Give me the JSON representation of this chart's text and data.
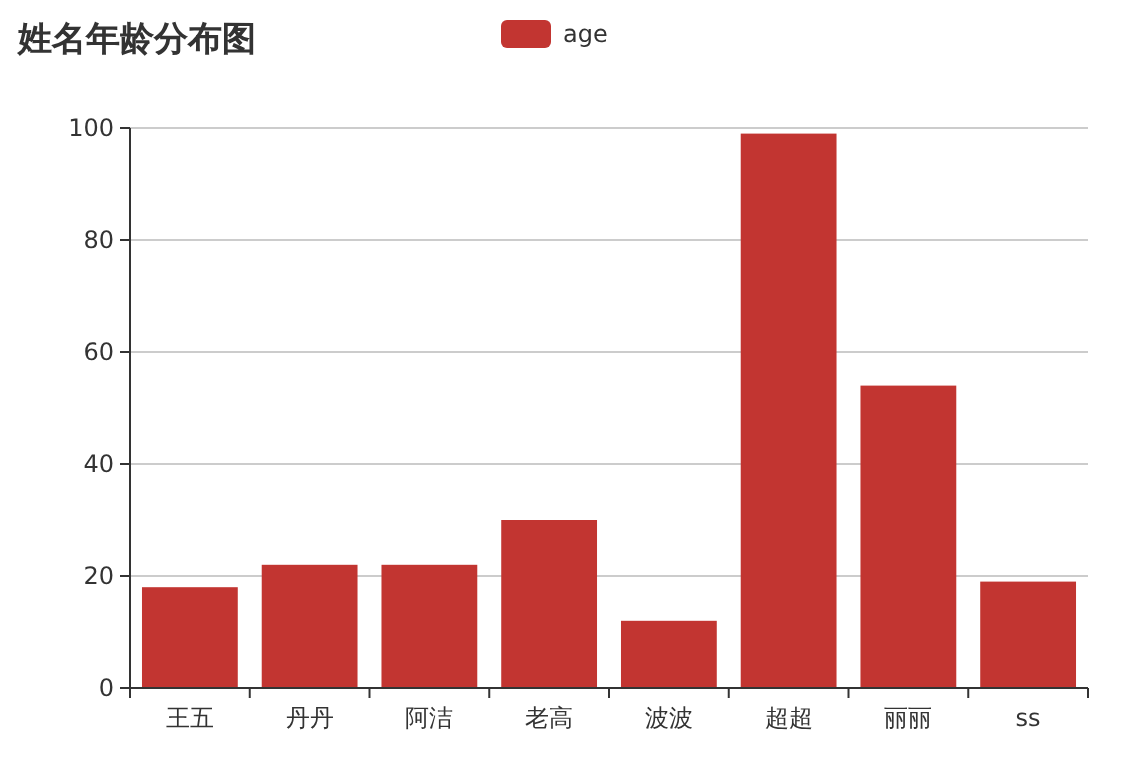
{
  "chart_data": {
    "type": "bar",
    "title": "姓名年龄分布图",
    "categories": [
      "王五",
      "丹丹",
      "阿洁",
      "老高",
      "波波",
      "超超",
      "丽丽",
      "ss"
    ],
    "series": [
      {
        "name": "age",
        "color": "#c23531",
        "values": [
          18,
          22,
          22,
          30,
          12,
          99,
          54,
          19
        ]
      }
    ],
    "ylim": [
      0,
      100
    ],
    "yticks": [
      0,
      20,
      40,
      60,
      80,
      100
    ],
    "grid": "y",
    "legend": "top"
  }
}
